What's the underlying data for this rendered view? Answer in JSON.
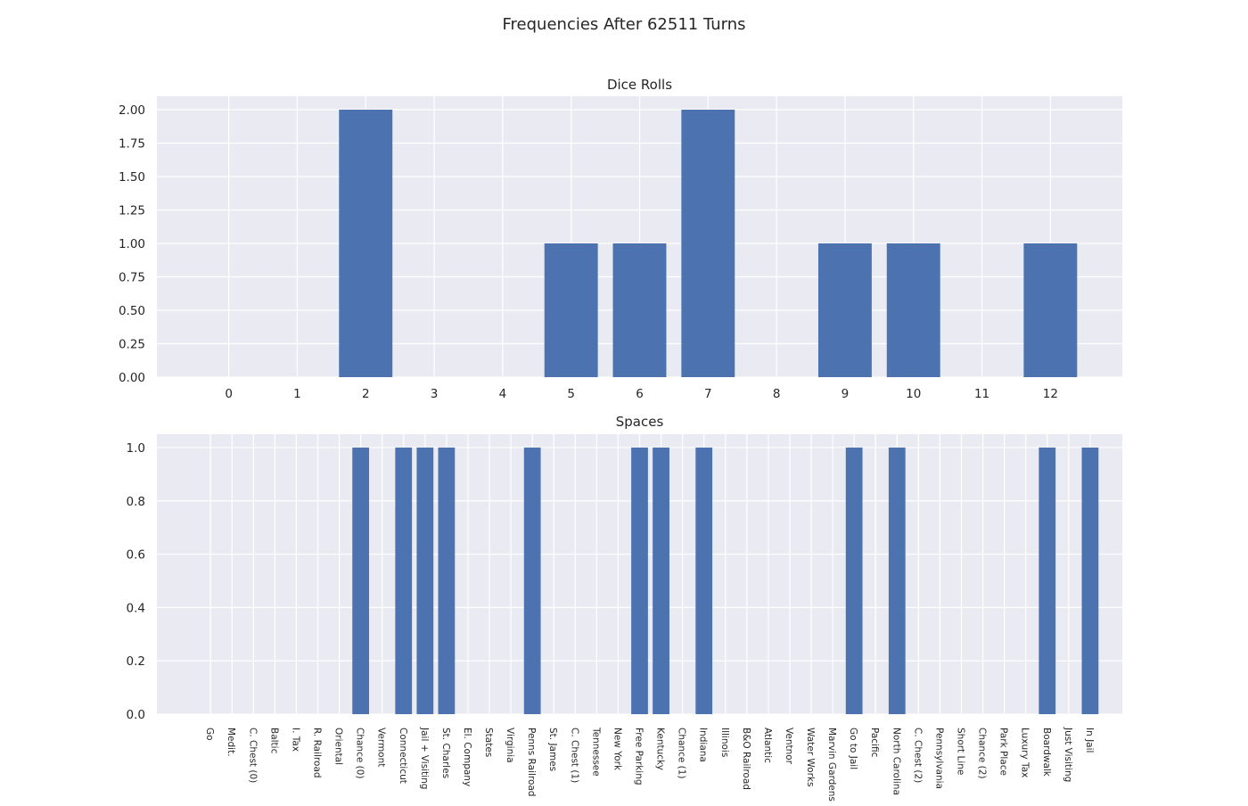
{
  "figure": {
    "title": "Frequencies After 62511 Turns",
    "colors": {
      "background": "#eaeaf2",
      "grid": "#ffffff",
      "bar": "#4c72b0",
      "text": "#262626"
    }
  },
  "chart_data": [
    {
      "type": "bar",
      "title": "Dice Rolls",
      "xlabel": "",
      "ylabel": "",
      "categories": [
        "0",
        "1",
        "2",
        "3",
        "4",
        "5",
        "6",
        "7",
        "8",
        "9",
        "10",
        "11",
        "12"
      ],
      "values": [
        0,
        0,
        2,
        0,
        0,
        1,
        1,
        2,
        0,
        1,
        1,
        0,
        1
      ],
      "ylim": [
        0,
        2.1
      ],
      "yticks": [
        "0.00",
        "0.25",
        "0.50",
        "0.75",
        "1.00",
        "1.25",
        "1.50",
        "1.75",
        "2.00"
      ],
      "grid": true,
      "legend": "none"
    },
    {
      "type": "bar",
      "title": "Spaces",
      "xlabel": "",
      "ylabel": "",
      "categories": [
        "Go",
        "Medit.",
        "C. Chest (0)",
        "Baltic",
        "I. Tax",
        "R. Railroad",
        "Oriental",
        "Chance (0)",
        "Vermont",
        "Connecticut",
        "Jail + Visiting",
        "St. Charles",
        "El. Company",
        "States",
        "Virginia",
        "Penns Railroad",
        "St. James",
        "C. Chest (1)",
        "Tennessee",
        "New York",
        "Free Parking",
        "Kentucky",
        "Chance (1)",
        "Indiana",
        "Illinois",
        "B&O Railroad",
        "Atlantic",
        "Ventnor",
        "Water Works",
        "Marvin Gardens",
        "Go to Jail",
        "Pacific",
        "North Carolina",
        "C. Chest (2)",
        "Pennsylvania",
        "Short Line",
        "Chance (2)",
        "Park Place",
        "Luxury Tax",
        "Boardwalk",
        "Just Visiting",
        "In Jail"
      ],
      "values": [
        0,
        0,
        0,
        0,
        0,
        0,
        0,
        1,
        0,
        1,
        1,
        1,
        0,
        0,
        0,
        1,
        0,
        0,
        0,
        0,
        1,
        1,
        0,
        1,
        0,
        0,
        0,
        0,
        0,
        0,
        1,
        0,
        1,
        0,
        0,
        0,
        0,
        0,
        0,
        1,
        0,
        1
      ],
      "ylim": [
        0,
        1.05
      ],
      "yticks": [
        "0.0",
        "0.2",
        "0.4",
        "0.6",
        "0.8",
        "1.0"
      ],
      "grid": true,
      "legend": "none"
    }
  ]
}
